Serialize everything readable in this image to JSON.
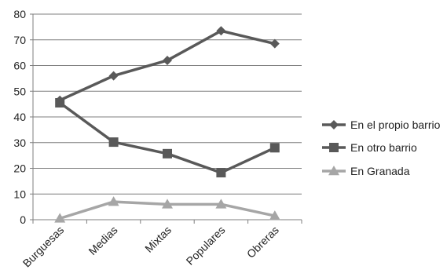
{
  "chart_data": {
    "type": "line",
    "categories": [
      "Burguesas",
      "Medias",
      "Mixtas",
      "Populares",
      "Obreras"
    ],
    "series": [
      {
        "name": "En el propio barrio",
        "values": [
          46.5,
          56.0,
          62.0,
          73.5,
          68.5
        ],
        "marker": "diamond",
        "color": "#595959"
      },
      {
        "name": "En otro barrio",
        "values": [
          45.5,
          30.2,
          25.7,
          18.3,
          28.0
        ],
        "marker": "square",
        "color": "#595959"
      },
      {
        "name": "En Granada",
        "values": [
          0.5,
          7.0,
          6.0,
          6.0,
          1.5
        ],
        "marker": "triangle",
        "color": "#a6a6a6"
      }
    ],
    "ylim": [
      0,
      80
    ],
    "yticks": [
      0,
      10,
      20,
      30,
      40,
      50,
      60,
      70,
      80
    ],
    "grid": true,
    "legend_position": "right",
    "title": "",
    "xlabel": "",
    "ylabel": ""
  }
}
